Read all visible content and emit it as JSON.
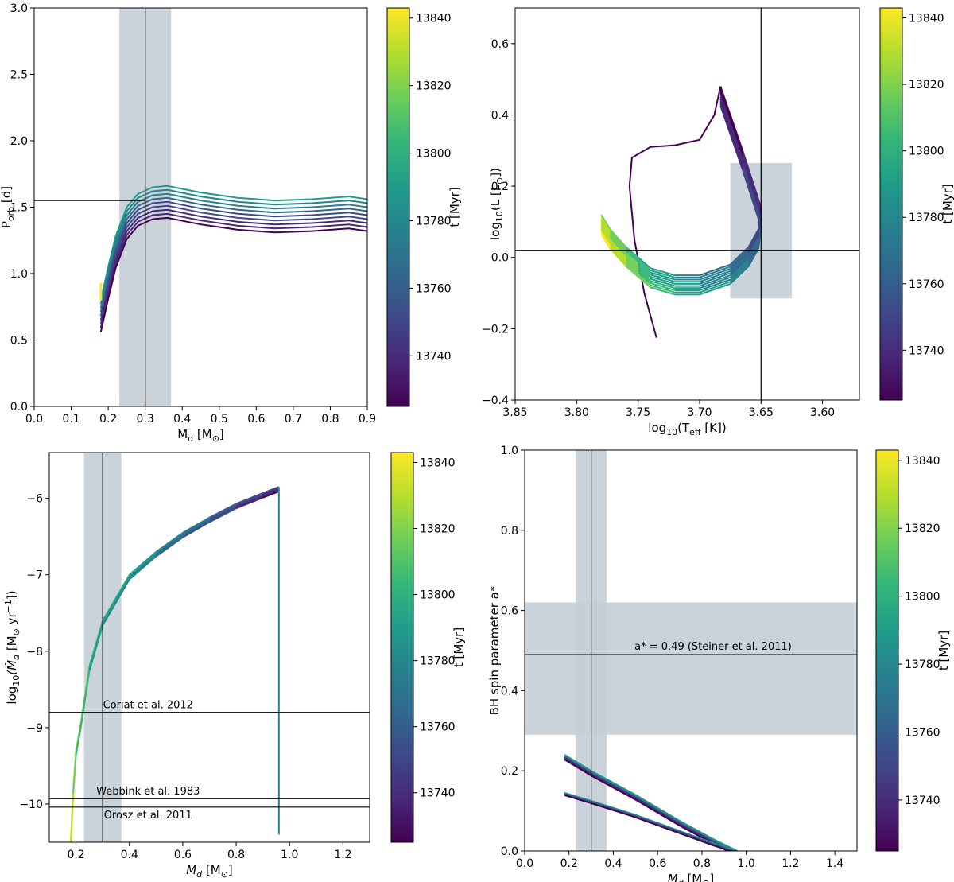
{
  "chart_data": [
    {
      "type": "line",
      "id": "porb",
      "xlabel": "M_d [M_⊙]",
      "ylabel": "P_orb [d]",
      "xlim": [
        0.0,
        0.9
      ],
      "ylim": [
        0.0,
        3.0
      ],
      "xticks": [
        0.0,
        0.1,
        0.2,
        0.3,
        0.4,
        0.5,
        0.6,
        0.7,
        0.8,
        0.9
      ],
      "xtick_labels": [
        "0.0",
        "0.1",
        "0.2",
        "0.3",
        "0.4",
        "0.5",
        "0.6",
        "0.7",
        "0.8",
        "0.9"
      ],
      "yticks": [
        0.0,
        0.5,
        1.0,
        1.5,
        2.0,
        2.5,
        3.0
      ],
      "ytick_labels": [
        "0.0",
        "0.5",
        "1.0",
        "1.5",
        "2.0",
        "2.5",
        "3.0"
      ],
      "band_x": [
        0.23,
        0.37
      ],
      "vline": 0.3,
      "hline": {
        "y": 1.55,
        "x_end": 0.3
      },
      "series_note": "family of tracks colored by age t",
      "tracks": {
        "x": [
          0.18,
          0.2,
          0.22,
          0.25,
          0.28,
          0.32,
          0.36,
          0.45,
          0.55,
          0.65,
          0.75,
          0.85,
          0.9
        ],
        "y": [
          0.8,
          1.05,
          1.28,
          1.5,
          1.6,
          1.65,
          1.66,
          1.61,
          1.57,
          1.55,
          1.56,
          1.58,
          1.56
        ],
        "offsets": [
          0.0,
          -0.03,
          -0.06,
          -0.09,
          -0.12,
          -0.15,
          -0.18,
          -0.21,
          -0.24
        ],
        "upturn": [
          0.8,
          0.93
        ]
      },
      "colorbar": {
        "label": "t [Myr]",
        "range": [
          13725,
          13843
        ],
        "ticks": [
          13740,
          13760,
          13780,
          13800,
          13820,
          13840
        ]
      }
    },
    {
      "type": "line",
      "id": "hr",
      "xlabel": "log_10(T_eff [K])",
      "ylabel": "log_10(L [L_⊙])",
      "xlim": [
        3.85,
        3.57
      ],
      "ylim": [
        -0.4,
        0.7
      ],
      "xticks": [
        3.85,
        3.8,
        3.75,
        3.7,
        3.65,
        3.6
      ],
      "xtick_labels": [
        "3.85",
        "3.80",
        "3.75",
        "3.70",
        "3.65",
        "3.60"
      ],
      "yticks": [
        -0.4,
        -0.2,
        0.0,
        0.2,
        0.4,
        0.6
      ],
      "ytick_labels": [
        "−0.4",
        "−0.2",
        "0.0",
        "0.2",
        "0.4",
        "0.6"
      ],
      "box": {
        "x": [
          3.675,
          3.625
        ],
        "y": [
          -0.115,
          0.265
        ]
      },
      "vline": 3.65,
      "hline": 0.02,
      "early_track": {
        "x": [
          3.735,
          3.745,
          3.753,
          3.757,
          3.755,
          3.74,
          3.72,
          3.7,
          3.688,
          3.683
        ],
        "y": [
          -0.225,
          -0.1,
          0.05,
          0.2,
          0.28,
          0.31,
          0.315,
          0.33,
          0.4,
          0.48
        ]
      },
      "tracks": {
        "x": [
          3.683,
          3.665,
          3.65,
          3.652,
          3.66,
          3.675,
          3.7,
          3.72,
          3.74,
          3.75,
          3.76,
          3.773,
          3.78
        ],
        "y": [
          0.48,
          0.3,
          0.14,
          0.08,
          0.03,
          -0.02,
          -0.05,
          -0.05,
          -0.03,
          0.0,
          0.03,
          0.08,
          0.12
        ],
        "offsets": [
          0.0,
          -0.006,
          -0.012,
          -0.018,
          -0.024,
          -0.03,
          -0.036,
          -0.042,
          -0.048,
          -0.054
        ]
      },
      "colorbar": {
        "label": "t [Myr]",
        "range": [
          13725,
          13843
        ],
        "ticks": [
          13740,
          13760,
          13780,
          13800,
          13820,
          13840
        ]
      }
    },
    {
      "type": "line",
      "id": "mdot",
      "xlabel": "M_d [M_⊙]",
      "ylabel": "log_10(Ṁ_d [M_⊙ yr^-1])",
      "xlim": [
        0.1,
        1.3
      ],
      "ylim": [
        -10.5,
        -5.4
      ],
      "xticks": [
        0.2,
        0.4,
        0.6,
        0.8,
        1.0,
        1.2
      ],
      "xtick_labels": [
        "0.2",
        "0.4",
        "0.6",
        "0.8",
        "1.0",
        "1.2"
      ],
      "yticks": [
        -10,
        -9,
        -8,
        -7,
        -6
      ],
      "ytick_labels": [
        "−10",
        "−9",
        "−8",
        "−7",
        "−6"
      ],
      "band_x": [
        0.23,
        0.37
      ],
      "vline": 0.3,
      "hlines": [
        {
          "y": -8.8,
          "label": "Coriat et al. 2012"
        },
        {
          "y": -9.93,
          "label": "Webbink et al. 1983"
        },
        {
          "y": -10.04,
          "label": "Orosz et al. 2011"
        }
      ],
      "tracks": {
        "x": [
          0.18,
          0.19,
          0.2,
          0.22,
          0.25,
          0.3,
          0.4,
          0.5,
          0.6,
          0.7,
          0.8,
          0.9,
          0.96
        ],
        "y": [
          -10.5,
          -9.8,
          -9.3,
          -8.9,
          -8.2,
          -7.6,
          -7.0,
          -6.7,
          -6.45,
          -6.25,
          -6.07,
          -5.93,
          -5.85
        ],
        "drop_x": 0.96,
        "drop_to": -10.4,
        "offsets": [
          0.0,
          -0.02,
          -0.04,
          -0.06
        ]
      },
      "colorbar": {
        "label": "t [Myr]",
        "range": [
          13725,
          13843
        ],
        "ticks": [
          13740,
          13760,
          13780,
          13800,
          13820,
          13840
        ]
      }
    },
    {
      "type": "line",
      "id": "spin",
      "xlabel": "M_d [M_⊙]",
      "ylabel": "BH spin parameter a*",
      "xlim": [
        0.0,
        1.5
      ],
      "ylim": [
        0.0,
        1.0
      ],
      "xticks": [
        0.0,
        0.2,
        0.4,
        0.6,
        0.8,
        1.0,
        1.2,
        1.4
      ],
      "xtick_labels": [
        "0.0",
        "0.2",
        "0.4",
        "0.6",
        "0.8",
        "1.0",
        "1.2",
        "1.4"
      ],
      "yticks": [
        0.0,
        0.2,
        0.4,
        0.6,
        0.8,
        1.0
      ],
      "ytick_labels": [
        "0.0",
        "0.2",
        "0.4",
        "0.6",
        "0.8",
        "1.0"
      ],
      "band_x": [
        0.23,
        0.37
      ],
      "band_y": [
        0.29,
        0.62
      ],
      "vline": 0.3,
      "hline": {
        "y": 0.49,
        "label": "a* = 0.49 (Steiner et al. 2011)"
      },
      "tracks_upper": {
        "x": [
          0.18,
          0.3,
          0.5,
          0.7,
          0.85,
          0.96
        ],
        "y": [
          0.24,
          0.2,
          0.14,
          0.075,
          0.03,
          0.0
        ],
        "offsets": [
          0.0,
          -0.003,
          -0.006,
          -0.009,
          -0.012
        ]
      },
      "tracks_lower": {
        "x": [
          0.18,
          0.3,
          0.5,
          0.7,
          0.85,
          0.96
        ],
        "y": [
          0.145,
          0.125,
          0.09,
          0.05,
          0.02,
          0.0
        ],
        "offsets": [
          0.0,
          -0.002,
          -0.004,
          -0.006
        ]
      },
      "colorbar": {
        "label": "t [Myr]",
        "range": [
          13725,
          13843
        ],
        "ticks": [
          13740,
          13760,
          13780,
          13800,
          13820,
          13840
        ]
      }
    }
  ],
  "colors": {
    "band": "#c5ced6",
    "viridis": [
      "#440154",
      "#482878",
      "#3e4989",
      "#31688e",
      "#26828e",
      "#1f9e89",
      "#35b779",
      "#6ece58",
      "#b5de2b",
      "#fde725"
    ]
  }
}
